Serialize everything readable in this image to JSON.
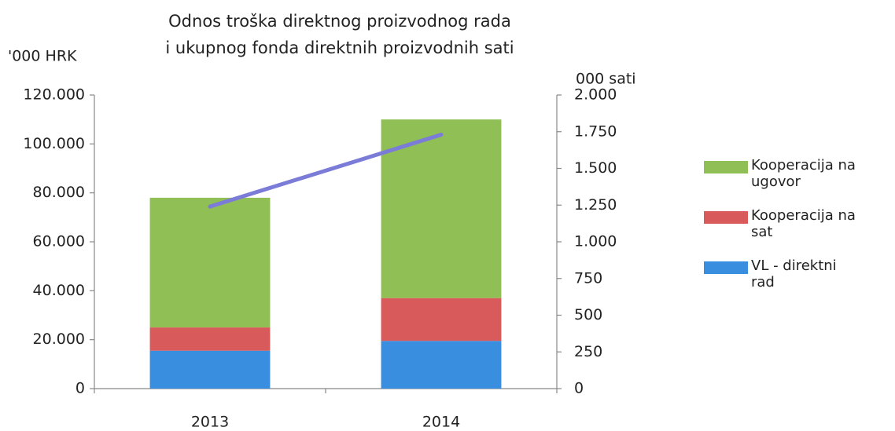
{
  "chart_data": {
    "type": "bar",
    "title": [
      "Odnos troška direktnog proizvodnog rada",
      "i ukupnog fonda direktnih proizvodnih sati"
    ],
    "y_label": "'000 HRK",
    "y2_label": "000 sati",
    "categories": [
      "2013",
      "2014"
    ],
    "stacked": true,
    "series": [
      {
        "name": "VL - direktni rad",
        "color": "#3a8ee0",
        "values": [
          15500,
          19500
        ]
      },
      {
        "name": "Kooperacija na sat",
        "color": "#d95a5a",
        "values": [
          9500,
          17500
        ]
      },
      {
        "name": "Kooperacija na ugovor",
        "color": "#8fbf55",
        "values": [
          53000,
          73000
        ]
      },
      {
        "type": "line",
        "axis": "y2",
        "color": "#7b7bd8",
        "values": [
          1240,
          1730
        ]
      }
    ],
    "ylim": [
      0,
      120000
    ],
    "yticks": [
      0,
      {
        "value": 20000,
        "label": "20.000"
      },
      {
        "value": 40000,
        "label": "40.000"
      },
      {
        "value": 60000,
        "label": "60.000"
      },
      {
        "value": 80000,
        "label": "80.000"
      },
      {
        "value": 100000,
        "label": "100.000"
      },
      {
        "value": 120000,
        "label": "120.000"
      }
    ],
    "y2lim": [
      0,
      2000
    ],
    "y2ticks": [
      0,
      250,
      500,
      750,
      {
        "value": 1000,
        "label": "1.000"
      },
      {
        "value": 1250,
        "label": "1.250"
      },
      {
        "value": 1500,
        "label": "1.500"
      },
      {
        "value": 1750,
        "label": "1.750"
      },
      {
        "value": 2000,
        "label": "2.000"
      }
    ],
    "legend": "right"
  }
}
